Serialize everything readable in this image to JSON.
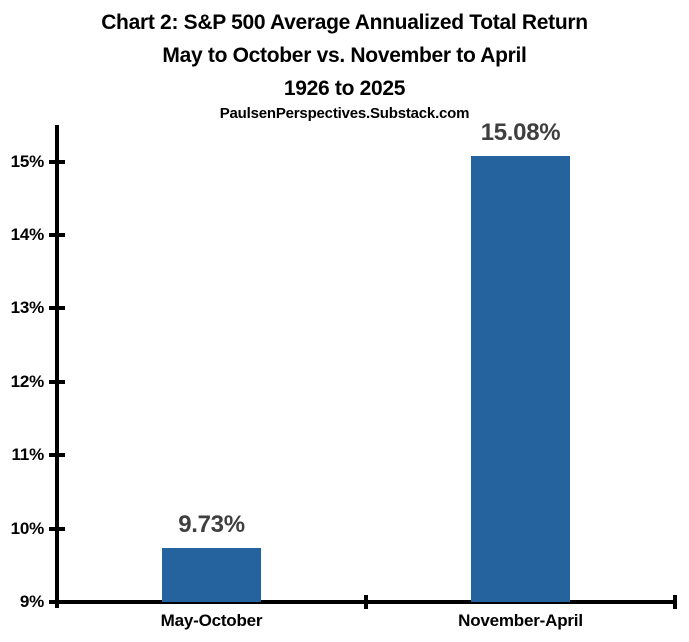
{
  "header": {
    "title_line1": "Chart 2: S&P 500 Average Annualized Total Return",
    "title_line2": "May to October vs. November to April",
    "title_line3": "1926 to 2025",
    "source": "PaulsenPerspectives.Substack.com"
  },
  "chart_data": {
    "type": "bar",
    "title": "Chart 2: S&P 500 Average Annualized Total Return",
    "subtitle": "May to October vs. November to April",
    "period": "1926 to 2025",
    "source": "PaulsenPerspectives.Substack.com",
    "categories": [
      "May-October",
      "November-April"
    ],
    "values": [
      9.73,
      15.08
    ],
    "value_labels": [
      "9.73%",
      "15.08%"
    ],
    "xlabel": "",
    "ylabel": "",
    "ybase": 9,
    "ylim": [
      9,
      15.5
    ],
    "yticks": [
      {
        "value": 9,
        "label": "9%"
      },
      {
        "value": 10,
        "label": "10%"
      },
      {
        "value": 11,
        "label": "11%"
      },
      {
        "value": 12,
        "label": "12%"
      },
      {
        "value": 13,
        "label": "13%"
      },
      {
        "value": 14,
        "label": "14%"
      },
      {
        "value": 15,
        "label": "15%"
      }
    ],
    "grid": false,
    "legend": "none",
    "colors": {
      "bar": "#25639F",
      "value_label": "#3F3F3F",
      "axis": "#000000",
      "text": "#000000",
      "background": "#FFFFFF"
    }
  }
}
